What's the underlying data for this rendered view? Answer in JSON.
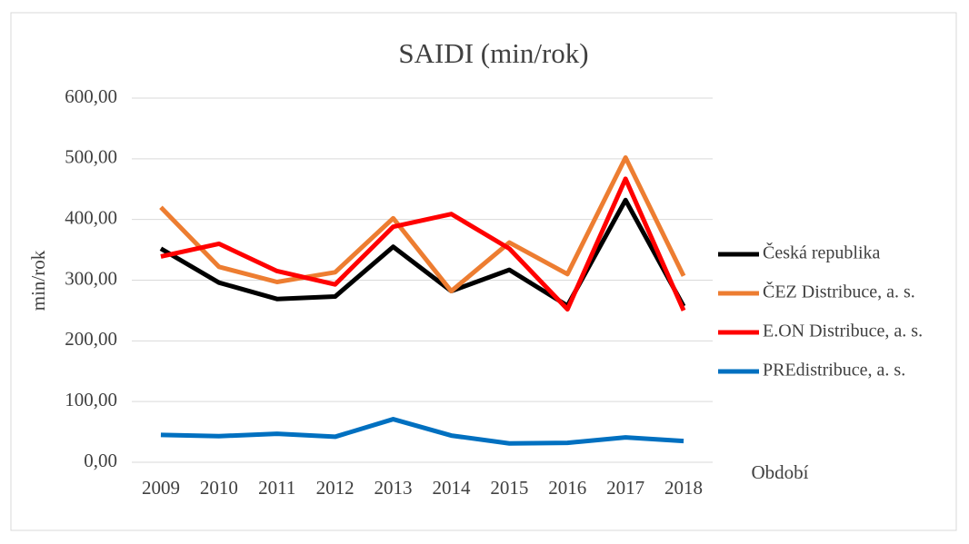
{
  "chart_data": {
    "type": "line",
    "title": "SAIDI (min/rok)",
    "x_label": "Období",
    "y_label": "min/rok",
    "categories": [
      "2009",
      "2010",
      "2011",
      "2012",
      "2013",
      "2014",
      "2015",
      "2016",
      "2017",
      "2018"
    ],
    "series": [
      {
        "name": "Česká republika",
        "color": "#000000",
        "values": [
          352,
          296,
          269,
          273,
          355,
          282,
          317,
          258,
          432,
          257
        ]
      },
      {
        "name": "ČEZ Distribuce, a. s.",
        "color": "#ed7d31",
        "values": [
          420,
          322,
          297,
          313,
          402,
          282,
          362,
          310,
          502,
          307
        ]
      },
      {
        "name": "E.ON Distribuce, a. s.",
        "color": "#ff0000",
        "values": [
          339,
          360,
          315,
          293,
          388,
          409,
          352,
          252,
          467,
          250
        ]
      },
      {
        "name": "PREdistribuce, a. s.",
        "color": "#0070c0",
        "values": [
          45,
          43,
          47,
          42,
          71,
          44,
          31,
          32,
          41,
          35
        ]
      }
    ],
    "ylim": [
      0,
      600
    ],
    "yticks": [
      {
        "value": 0,
        "label": "0,00"
      },
      {
        "value": 100,
        "label": "100,00"
      },
      {
        "value": 200,
        "label": "200,00"
      },
      {
        "value": 300,
        "label": "300,00"
      },
      {
        "value": 400,
        "label": "400,00"
      },
      {
        "value": 500,
        "label": "500,00"
      },
      {
        "value": 600,
        "label": "600,00"
      }
    ],
    "grid": true,
    "legend": "right"
  }
}
